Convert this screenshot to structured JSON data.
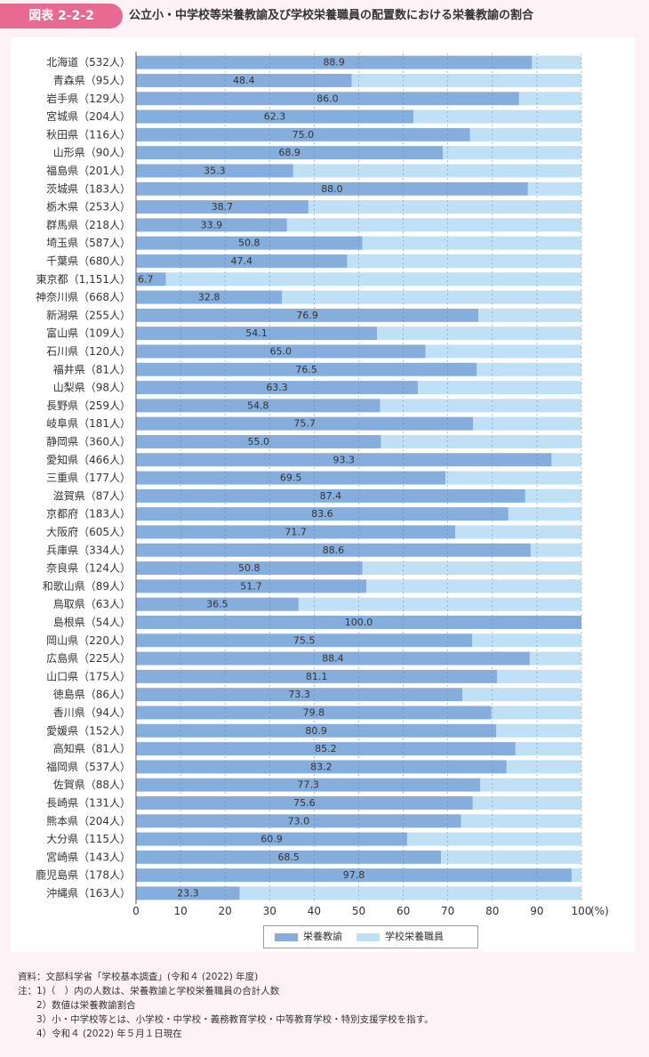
{
  "header": {
    "badge": "図表 2-2-2",
    "title": "公立小・中学校等栄養教諭及び学校栄養職員の配置数における栄養教諭の割合"
  },
  "colors": {
    "primary": "#86aedc",
    "secondary": "#bfe0f5",
    "badge": "#e86a92"
  },
  "legend": {
    "series1": "栄養教諭",
    "series2": "学校栄養職員"
  },
  "notes": [
    "資料：文部科学省「学校基本調査」(令和４ (2022) 年度)",
    "注：1)（　）内の人数は、栄養教諭と学校栄養職員の合計人数",
    "　　2）数値は栄養教諭割合",
    "　　3）小・中学校等とは、小学校・中学校・義務教育学校・中等教育学校・特別支援学校を指す。",
    "　　4）令和４ (2022) 年５月１日現在"
  ],
  "chart_data": {
    "type": "bar",
    "orientation": "horizontal",
    "stacked": true,
    "xlim": [
      0,
      100
    ],
    "xticks": [
      "0",
      "10",
      "20",
      "30",
      "40",
      "50",
      "60",
      "70",
      "80",
      "90",
      "100"
    ],
    "x_unit": "(%)",
    "categories": [
      "北海道（532人）",
      "青森県（95人）",
      "岩手県（129人）",
      "宮城県（204人）",
      "秋田県（116人）",
      "山形県（90人）",
      "福島県（201人）",
      "茨城県（183人）",
      "栃木県（253人）",
      "群馬県（218人）",
      "埼玉県（587人）",
      "千葉県（680人）",
      "東京都（1,151人）",
      "神奈川県（668人）",
      "新潟県（255人）",
      "富山県（109人）",
      "石川県（120人）",
      "福井県（81人）",
      "山梨県（98人）",
      "長野県（259人）",
      "岐阜県（181人）",
      "静岡県（360人）",
      "愛知県（466人）",
      "三重県（177人）",
      "滋賀県（87人）",
      "京都府（183人）",
      "大阪府（605人）",
      "兵庫県（334人）",
      "奈良県（124人）",
      "和歌山県（89人）",
      "鳥取県（63人）",
      "島根県（54人）",
      "岡山県（220人）",
      "広島県（225人）",
      "山口県（175人）",
      "徳島県（86人）",
      "香川県（94人）",
      "愛媛県（152人）",
      "高知県（81人）",
      "福岡県（537人）",
      "佐賀県（88人）",
      "長崎県（131人）",
      "熊本県（204人）",
      "大分県（115人）",
      "宮崎県（143人）",
      "鹿児島県（178人）",
      "沖縄県（163人）"
    ],
    "series": [
      {
        "name": "栄養教諭",
        "values": [
          88.9,
          48.4,
          86.0,
          62.3,
          75.0,
          68.9,
          35.3,
          88.0,
          38.7,
          33.9,
          50.8,
          47.4,
          6.7,
          32.8,
          76.9,
          54.1,
          65.0,
          76.5,
          63.3,
          54.8,
          75.7,
          55.0,
          93.3,
          69.5,
          87.4,
          83.6,
          71.7,
          88.6,
          50.8,
          51.7,
          36.5,
          100.0,
          75.5,
          88.4,
          81.1,
          73.3,
          79.8,
          80.9,
          85.2,
          83.2,
          77.3,
          75.6,
          73.0,
          60.9,
          68.5,
          97.8,
          23.3
        ]
      },
      {
        "name": "学校栄養職員",
        "values": [
          11.1,
          51.6,
          14.0,
          37.7,
          25.0,
          31.1,
          64.7,
          12.0,
          61.3,
          66.1,
          49.2,
          52.6,
          93.3,
          67.2,
          23.1,
          45.9,
          35.0,
          23.5,
          36.7,
          45.2,
          24.3,
          45.0,
          6.7,
          30.5,
          12.6,
          16.4,
          28.3,
          11.4,
          49.2,
          48.3,
          63.5,
          0.0,
          24.5,
          11.6,
          18.9,
          26.7,
          20.2,
          19.1,
          14.8,
          16.8,
          22.7,
          24.4,
          27.0,
          39.1,
          31.5,
          2.2,
          76.7
        ]
      }
    ],
    "data_labels": [
      "88.9",
      "48.4",
      "86.0",
      "62.3",
      "75.0",
      "68.9",
      "35.3",
      "88.0",
      "38.7",
      "33.9",
      "50.8",
      "47.4",
      "6.7",
      "32.8",
      "76.9",
      "54.1",
      "65.0",
      "76.5",
      "63.3",
      "54.8",
      "75.7",
      "55.0",
      "93.3",
      "69.5",
      "87.4",
      "83.6",
      "71.7",
      "88.6",
      "50.8",
      "51.7",
      "36.5",
      "100.0",
      "75.5",
      "88.4",
      "81.1",
      "73.3",
      "79.8",
      "80.9",
      "85.2",
      "83.2",
      "77.3",
      "75.6",
      "73.0",
      "60.9",
      "68.5",
      "97.8",
      "23.3"
    ],
    "grid": true,
    "legend_position": "bottom"
  }
}
